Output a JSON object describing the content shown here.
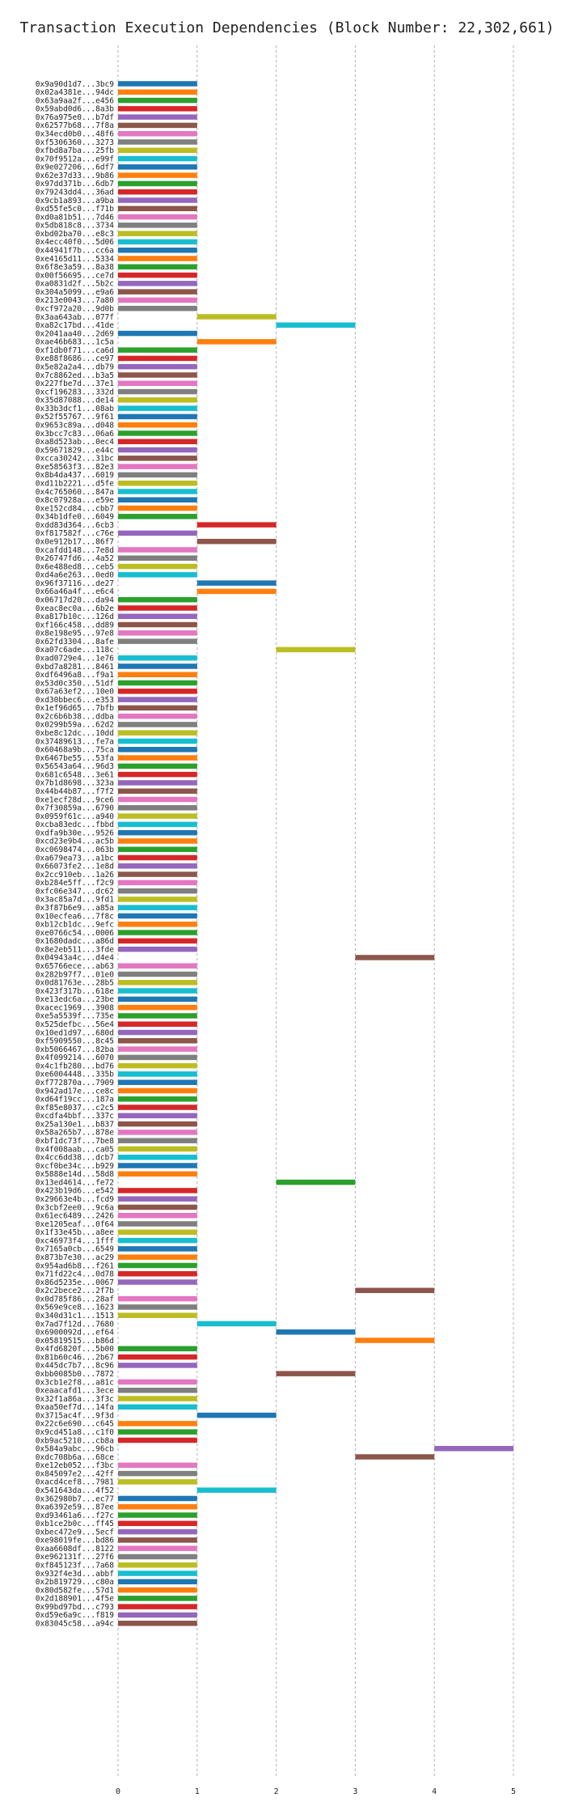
{
  "chart_data": {
    "type": "bar",
    "orientation": "horizontal",
    "title": "Transaction Execution Dependencies (Block Number: 22,302,661)",
    "xlabel": "",
    "ylabel": "",
    "xlim": [
      0,
      5
    ],
    "xticks": [
      "0",
      "1",
      "2",
      "3",
      "4",
      "5"
    ],
    "grid": "vertical dashed",
    "colors": [
      "#1f77b4",
      "#ff7f0e",
      "#2ca02c",
      "#d62728",
      "#9467bd",
      "#8c564b",
      "#e377c2",
      "#7f7f7f",
      "#bcbd22",
      "#17becf"
    ],
    "transactions": [
      {
        "hash": "0x9a90d1d7...3bc9",
        "start": 0,
        "end": 1
      },
      {
        "hash": "0x02a4381e...94dc",
        "start": 0,
        "end": 1
      },
      {
        "hash": "0x63a9aa2f...e456",
        "start": 0,
        "end": 1
      },
      {
        "hash": "0x59abd0d6...8a3b",
        "start": 0,
        "end": 1
      },
      {
        "hash": "0x76a975e0...b7df",
        "start": 0,
        "end": 1
      },
      {
        "hash": "0x62577b68...7f8a",
        "start": 0,
        "end": 1
      },
      {
        "hash": "0x34ecd0b0...48f6",
        "start": 0,
        "end": 1
      },
      {
        "hash": "0xf5306360...3273",
        "start": 0,
        "end": 1
      },
      {
        "hash": "0xfbd8a7ba...25fb",
        "start": 0,
        "end": 1
      },
      {
        "hash": "0x70f9512a...e99f",
        "start": 0,
        "end": 1
      },
      {
        "hash": "0x9e027206...6df7",
        "start": 0,
        "end": 1
      },
      {
        "hash": "0x62e37d33...9b86",
        "start": 0,
        "end": 1
      },
      {
        "hash": "0x97dd371b...6db7",
        "start": 0,
        "end": 1
      },
      {
        "hash": "0x79243dd4...36ad",
        "start": 0,
        "end": 1
      },
      {
        "hash": "0x9cb1a893...a9ba",
        "start": 0,
        "end": 1
      },
      {
        "hash": "0xd55fe5c0...f71b",
        "start": 0,
        "end": 1
      },
      {
        "hash": "0xd0a81b51...7d46",
        "start": 0,
        "end": 1
      },
      {
        "hash": "0x5db818c8...3734",
        "start": 0,
        "end": 1
      },
      {
        "hash": "0xbd02ba70...e8c3",
        "start": 0,
        "end": 1
      },
      {
        "hash": "0x4ecc40f0...5d06",
        "start": 0,
        "end": 1
      },
      {
        "hash": "0x44941f7b...cc6a",
        "start": 0,
        "end": 1
      },
      {
        "hash": "0xe4165d11...5334",
        "start": 0,
        "end": 1
      },
      {
        "hash": "0x6f8e3a59...8a38",
        "start": 0,
        "end": 1
      },
      {
        "hash": "0x00f56695...ce7d",
        "start": 0,
        "end": 1
      },
      {
        "hash": "0xa0831d2f...5b2c",
        "start": 0,
        "end": 1
      },
      {
        "hash": "0x304a5099...e9a6",
        "start": 0,
        "end": 1
      },
      {
        "hash": "0x213e0043...7a80",
        "start": 0,
        "end": 1
      },
      {
        "hash": "0xcf972a20...9d0b",
        "start": 0,
        "end": 1
      },
      {
        "hash": "0x3aa643ab...077f",
        "start": 1,
        "end": 2
      },
      {
        "hash": "0xa82c17bd...41de",
        "start": 2,
        "end": 3
      },
      {
        "hash": "0x2041aa40...2d69",
        "start": 0,
        "end": 1
      },
      {
        "hash": "0xae46b683...1c5a",
        "start": 1,
        "end": 2
      },
      {
        "hash": "0xf1db0f71...ca6d",
        "start": 0,
        "end": 1
      },
      {
        "hash": "0xe88f8686...ce97",
        "start": 0,
        "end": 1
      },
      {
        "hash": "0x5e82a2a4...db79",
        "start": 0,
        "end": 1
      },
      {
        "hash": "0x7c8862ed...b3a5",
        "start": 0,
        "end": 1
      },
      {
        "hash": "0x227fbe7d...37e1",
        "start": 0,
        "end": 1
      },
      {
        "hash": "0xcf196283...332d",
        "start": 0,
        "end": 1
      },
      {
        "hash": "0x35d87088...de14",
        "start": 0,
        "end": 1
      },
      {
        "hash": "0x33b3dcf1...08ab",
        "start": 0,
        "end": 1
      },
      {
        "hash": "0x52f55767...9f61",
        "start": 0,
        "end": 1
      },
      {
        "hash": "0x9653c89a...d048",
        "start": 0,
        "end": 1
      },
      {
        "hash": "0x3bcc7c83...06a6",
        "start": 0,
        "end": 1
      },
      {
        "hash": "0xa8d523ab...0ec4",
        "start": 0,
        "end": 1
      },
      {
        "hash": "0x59671829...e44c",
        "start": 0,
        "end": 1
      },
      {
        "hash": "0xcca30242...31bc",
        "start": 0,
        "end": 1
      },
      {
        "hash": "0xe58563f3...82e3",
        "start": 0,
        "end": 1
      },
      {
        "hash": "0x8b4da437...6019",
        "start": 0,
        "end": 1
      },
      {
        "hash": "0xd11b2221...d5fe",
        "start": 0,
        "end": 1
      },
      {
        "hash": "0x4c765060...847a",
        "start": 0,
        "end": 1
      },
      {
        "hash": "0x8c07928a...e59e",
        "start": 0,
        "end": 1
      },
      {
        "hash": "0xe152cd84...cbb7",
        "start": 0,
        "end": 1
      },
      {
        "hash": "0x34b1dfe0...6049",
        "start": 0,
        "end": 1
      },
      {
        "hash": "0xdd83d364...6cb3",
        "start": 1,
        "end": 2
      },
      {
        "hash": "0xf817582f...c76e",
        "start": 0,
        "end": 1
      },
      {
        "hash": "0x0e912b17...86f7",
        "start": 1,
        "end": 2
      },
      {
        "hash": "0xcafdd148...7e8d",
        "start": 0,
        "end": 1
      },
      {
        "hash": "0x26747fd6...4a52",
        "start": 0,
        "end": 1
      },
      {
        "hash": "0x6e488ed8...ceb5",
        "start": 0,
        "end": 1
      },
      {
        "hash": "0xd4a6e263...0ed0",
        "start": 0,
        "end": 1
      },
      {
        "hash": "0x96f37116...de27",
        "start": 1,
        "end": 2
      },
      {
        "hash": "0x66a46a4f...e6c4",
        "start": 1,
        "end": 2
      },
      {
        "hash": "0x06717d20...da94",
        "start": 0,
        "end": 1
      },
      {
        "hash": "0xeac8ec0a...6b2e",
        "start": 0,
        "end": 1
      },
      {
        "hash": "0xa817b10c...126d",
        "start": 0,
        "end": 1
      },
      {
        "hash": "0xf166c458...dd89",
        "start": 0,
        "end": 1
      },
      {
        "hash": "0x8e198e95...97e8",
        "start": 0,
        "end": 1
      },
      {
        "hash": "0x62fd3304...8afe",
        "start": 0,
        "end": 1
      },
      {
        "hash": "0xa07c6ade...118c",
        "start": 2,
        "end": 3
      },
      {
        "hash": "0xad0729e4...1e76",
        "start": 0,
        "end": 1
      },
      {
        "hash": "0xbd7a8281...8461",
        "start": 0,
        "end": 1
      },
      {
        "hash": "0xdf6496a8...f9a1",
        "start": 0,
        "end": 1
      },
      {
        "hash": "0x53d0c350...51df",
        "start": 0,
        "end": 1
      },
      {
        "hash": "0x67a63ef2...10e0",
        "start": 0,
        "end": 1
      },
      {
        "hash": "0xd30bbec6...e353",
        "start": 0,
        "end": 1
      },
      {
        "hash": "0x1ef96d65...7bfb",
        "start": 0,
        "end": 1
      },
      {
        "hash": "0x2c6b6b38...ddba",
        "start": 0,
        "end": 1
      },
      {
        "hash": "0x0299b59a...62d2",
        "start": 0,
        "end": 1
      },
      {
        "hash": "0xbe8c12dc...10dd",
        "start": 0,
        "end": 1
      },
      {
        "hash": "0x37489613...fe7a",
        "start": 0,
        "end": 1
      },
      {
        "hash": "0x60468a9b...75ca",
        "start": 0,
        "end": 1
      },
      {
        "hash": "0x6467be55...53fa",
        "start": 0,
        "end": 1
      },
      {
        "hash": "0x56543a64...96d3",
        "start": 0,
        "end": 1
      },
      {
        "hash": "0x681c6548...3e61",
        "start": 0,
        "end": 1
      },
      {
        "hash": "0x7b1d8698...323a",
        "start": 0,
        "end": 1
      },
      {
        "hash": "0x44b44b87...f7f2",
        "start": 0,
        "end": 1
      },
      {
        "hash": "0xe1ecf28d...9ce6",
        "start": 0,
        "end": 1
      },
      {
        "hash": "0x7f30859a...6790",
        "start": 0,
        "end": 1
      },
      {
        "hash": "0x0959f61c...a940",
        "start": 0,
        "end": 1
      },
      {
        "hash": "0xcba83edc...fbbd",
        "start": 0,
        "end": 1
      },
      {
        "hash": "0xdfa9b30e...9526",
        "start": 0,
        "end": 1
      },
      {
        "hash": "0xcd23e9b4...ac5b",
        "start": 0,
        "end": 1
      },
      {
        "hash": "0xc0698474...063b",
        "start": 0,
        "end": 1
      },
      {
        "hash": "0xa679ea73...a1bc",
        "start": 0,
        "end": 1
      },
      {
        "hash": "0x66073fe2...1e8d",
        "start": 0,
        "end": 1
      },
      {
        "hash": "0x2cc910eb...1a26",
        "start": 0,
        "end": 1
      },
      {
        "hash": "0xb284e5ff...f2c9",
        "start": 0,
        "end": 1
      },
      {
        "hash": "0xfc06e347...dc62",
        "start": 0,
        "end": 1
      },
      {
        "hash": "0x3ac85a7d...9fd1",
        "start": 0,
        "end": 1
      },
      {
        "hash": "0x3f87b6e9...a85a",
        "start": 0,
        "end": 1
      },
      {
        "hash": "0x10ecfea6...7f8c",
        "start": 0,
        "end": 1
      },
      {
        "hash": "0xb12cb1dc...9efc",
        "start": 0,
        "end": 1
      },
      {
        "hash": "0xe0766c54...0006",
        "start": 0,
        "end": 1
      },
      {
        "hash": "0x1680dadc...a86d",
        "start": 0,
        "end": 1
      },
      {
        "hash": "0x8e2eb511...3fde",
        "start": 0,
        "end": 1
      },
      {
        "hash": "0x04943a4c...d4e4",
        "start": 3,
        "end": 4
      },
      {
        "hash": "0x65766ece...ab63",
        "start": 0,
        "end": 1
      },
      {
        "hash": "0x282b97f7...01e0",
        "start": 0,
        "end": 1
      },
      {
        "hash": "0x0d81763e...28b5",
        "start": 0,
        "end": 1
      },
      {
        "hash": "0x423f317b...618e",
        "start": 0,
        "end": 1
      },
      {
        "hash": "0xe13edc6a...23be",
        "start": 0,
        "end": 1
      },
      {
        "hash": "0xacec1969...3908",
        "start": 0,
        "end": 1
      },
      {
        "hash": "0xe5a5539f...735e",
        "start": 0,
        "end": 1
      },
      {
        "hash": "0x525defbc...56e4",
        "start": 0,
        "end": 1
      },
      {
        "hash": "0x10ed1d97...680d",
        "start": 0,
        "end": 1
      },
      {
        "hash": "0xf5909550...8c45",
        "start": 0,
        "end": 1
      },
      {
        "hash": "0xb5066467...82ba",
        "start": 0,
        "end": 1
      },
      {
        "hash": "0x4f099214...6070",
        "start": 0,
        "end": 1
      },
      {
        "hash": "0x4c1fb280...bd76",
        "start": 0,
        "end": 1
      },
      {
        "hash": "0xe6004448...335b",
        "start": 0,
        "end": 1
      },
      {
        "hash": "0xf772870a...7909",
        "start": 0,
        "end": 1
      },
      {
        "hash": "0x942ad17e...ce8c",
        "start": 0,
        "end": 1
      },
      {
        "hash": "0xd64f19cc...187a",
        "start": 0,
        "end": 1
      },
      {
        "hash": "0xf85e8037...c2c5",
        "start": 0,
        "end": 1
      },
      {
        "hash": "0xcdfa4bbf...337c",
        "start": 0,
        "end": 1
      },
      {
        "hash": "0x25a130e1...b837",
        "start": 0,
        "end": 1
      },
      {
        "hash": "0x58a265b7...878e",
        "start": 0,
        "end": 1
      },
      {
        "hash": "0xbf1dc73f...7be8",
        "start": 0,
        "end": 1
      },
      {
        "hash": "0x4f008aab...ca05",
        "start": 0,
        "end": 1
      },
      {
        "hash": "0x4cc6dd38...dcb7",
        "start": 0,
        "end": 1
      },
      {
        "hash": "0xcf0be34c...b929",
        "start": 0,
        "end": 1
      },
      {
        "hash": "0x5888e14d...58d8",
        "start": 0,
        "end": 1
      },
      {
        "hash": "0x13ed4614...fe72",
        "start": 2,
        "end": 3
      },
      {
        "hash": "0x423b19d6...e542",
        "start": 0,
        "end": 1
      },
      {
        "hash": "0x29663e4b...fcd9",
        "start": 0,
        "end": 1
      },
      {
        "hash": "0x3cbf2ee0...9c6a",
        "start": 0,
        "end": 1
      },
      {
        "hash": "0x61ec6489...2426",
        "start": 0,
        "end": 1
      },
      {
        "hash": "0xe1205eaf...0f64",
        "start": 0,
        "end": 1
      },
      {
        "hash": "0x1f33e45b...a8ee",
        "start": 0,
        "end": 1
      },
      {
        "hash": "0xc46973f4...1fff",
        "start": 0,
        "end": 1
      },
      {
        "hash": "0x7165a0cb...6549",
        "start": 0,
        "end": 1
      },
      {
        "hash": "0x873b7e30...ac29",
        "start": 0,
        "end": 1
      },
      {
        "hash": "0x954ad6b8...f261",
        "start": 0,
        "end": 1
      },
      {
        "hash": "0x71fd22c4...0d78",
        "start": 0,
        "end": 1
      },
      {
        "hash": "0x86d5235e...0067",
        "start": 0,
        "end": 1
      },
      {
        "hash": "0x2c2bece2...2f7b",
        "start": 3,
        "end": 4
      },
      {
        "hash": "0x0d785f86...28af",
        "start": 0,
        "end": 1
      },
      {
        "hash": "0x569e9ce8...1623",
        "start": 0,
        "end": 1
      },
      {
        "hash": "0x340d31c1...1513",
        "start": 0,
        "end": 1
      },
      {
        "hash": "0x7ad7f12d...7680",
        "start": 1,
        "end": 2
      },
      {
        "hash": "0x6900092d...ef64",
        "start": 2,
        "end": 3
      },
      {
        "hash": "0x05819515...b86d",
        "start": 3,
        "end": 4
      },
      {
        "hash": "0x4fd6820f...5b00",
        "start": 0,
        "end": 1
      },
      {
        "hash": "0x81b60c46...2b67",
        "start": 0,
        "end": 1
      },
      {
        "hash": "0x445dc7b7...8c96",
        "start": 0,
        "end": 1
      },
      {
        "hash": "0xbb0085b0...7872",
        "start": 2,
        "end": 3
      },
      {
        "hash": "0x3cb1e2f8...a81c",
        "start": 0,
        "end": 1
      },
      {
        "hash": "0xeaacafd1...3ece",
        "start": 0,
        "end": 1
      },
      {
        "hash": "0x32f1a86a...3f3c",
        "start": 0,
        "end": 1
      },
      {
        "hash": "0xaa50ef7d...14fa",
        "start": 0,
        "end": 1
      },
      {
        "hash": "0x3715ac4f...9f3d",
        "start": 1,
        "end": 2
      },
      {
        "hash": "0x22c6e690...c645",
        "start": 0,
        "end": 1
      },
      {
        "hash": "0x9cd451a8...c1f0",
        "start": 0,
        "end": 1
      },
      {
        "hash": "0xb9ac5210...cb8a",
        "start": 0,
        "end": 1
      },
      {
        "hash": "0x584a9abc...96cb",
        "start": 4,
        "end": 5
      },
      {
        "hash": "0xdc708b6a...68ce",
        "start": 3,
        "end": 4
      },
      {
        "hash": "0xe12eb052...f3bc",
        "start": 0,
        "end": 1
      },
      {
        "hash": "0x845097e2...42ff",
        "start": 0,
        "end": 1
      },
      {
        "hash": "0xacd4cef8...7981",
        "start": 0,
        "end": 1
      },
      {
        "hash": "0x541643da...4f52",
        "start": 1,
        "end": 2
      },
      {
        "hash": "0x362980b7...ec77",
        "start": 0,
        "end": 1
      },
      {
        "hash": "0xa6392e59...87ee",
        "start": 0,
        "end": 1
      },
      {
        "hash": "0xd93461a6...f27c",
        "start": 0,
        "end": 1
      },
      {
        "hash": "0xb1ce2b0c...ff45",
        "start": 0,
        "end": 1
      },
      {
        "hash": "0xbec472e9...5ecf",
        "start": 0,
        "end": 1
      },
      {
        "hash": "0xe98019fe...bd86",
        "start": 0,
        "end": 1
      },
      {
        "hash": "0xaa6608df...8122",
        "start": 0,
        "end": 1
      },
      {
        "hash": "0xe962131f...27f6",
        "start": 0,
        "end": 1
      },
      {
        "hash": "0xf845123f...7a68",
        "start": 0,
        "end": 1
      },
      {
        "hash": "0x932f4e3d...abbf",
        "start": 0,
        "end": 1
      },
      {
        "hash": "0x2b819729...c80a",
        "start": 0,
        "end": 1
      },
      {
        "hash": "0x80d582fe...57d1",
        "start": 0,
        "end": 1
      },
      {
        "hash": "0x2d188901...4f5e",
        "start": 0,
        "end": 1
      },
      {
        "hash": "0x99bd97bd...c793",
        "start": 0,
        "end": 1
      },
      {
        "hash": "0xd59e6a9c...f819",
        "start": 0,
        "end": 1
      },
      {
        "hash": "0x83045c58...a94c",
        "start": 0,
        "end": 1
      }
    ]
  }
}
